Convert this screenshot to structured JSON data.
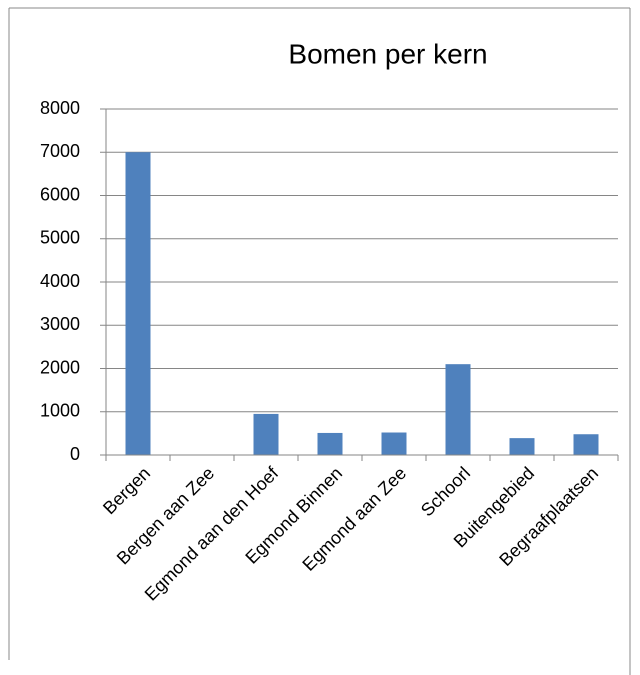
{
  "chart_data": {
    "type": "bar",
    "title": "Bomen per kern",
    "categories": [
      "Bergen",
      "Bergen aan Zee",
      "Egmond aan den Hoef",
      "Egmond Binnen",
      "Egmond aan Zee",
      "Schoorl",
      "Buitengebied",
      "Begraafplaatsen"
    ],
    "values": [
      7000,
      0,
      950,
      510,
      520,
      2100,
      390,
      480
    ],
    "color": "#4f81bd",
    "ylim": [
      0,
      8000
    ],
    "yticks": [
      0,
      1000,
      2000,
      3000,
      4000,
      5000,
      6000,
      7000,
      8000
    ],
    "grid": true
  }
}
